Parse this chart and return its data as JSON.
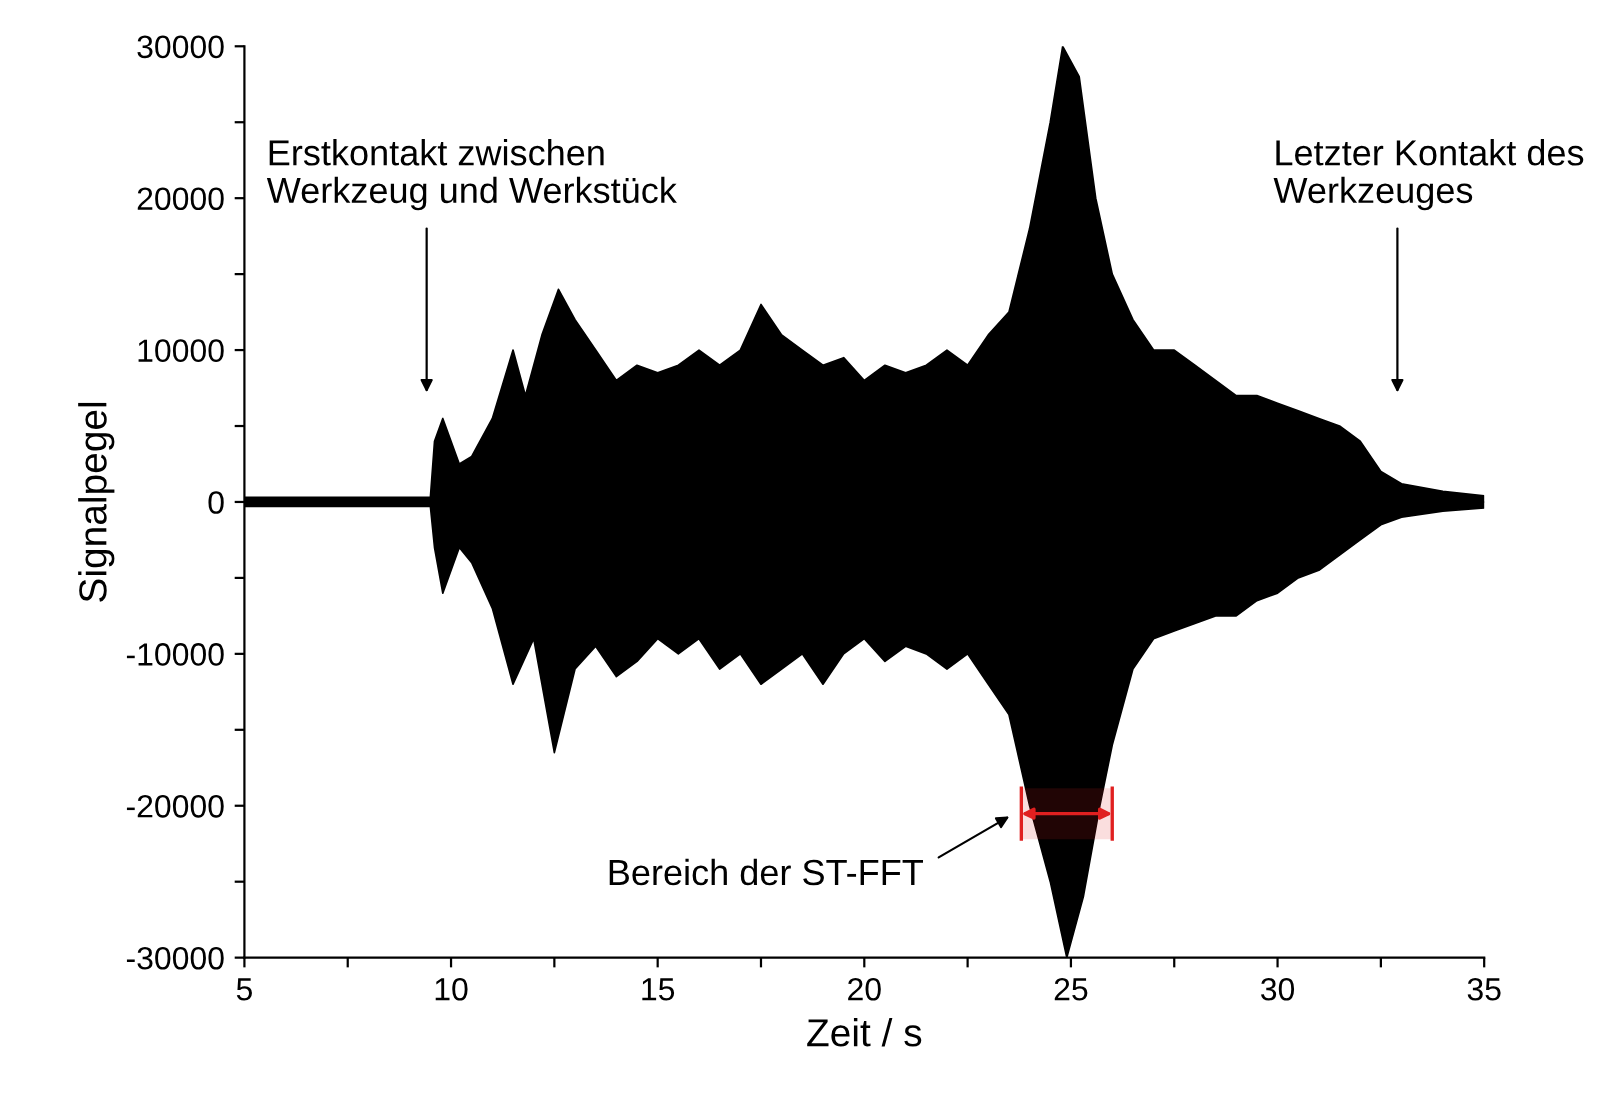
{
  "chart_data": {
    "type": "area",
    "xlabel": "Zeit / s",
    "ylabel": "Signalpegel",
    "xlim": [
      5,
      35
    ],
    "ylim": [
      -30000,
      30000
    ],
    "xticks": [
      5,
      {
        "value": 7.5,
        "label": null
      },
      10,
      {
        "value": 12.5,
        "label": null
      },
      15,
      {
        "value": 17.5,
        "label": null
      },
      20,
      {
        "value": 22.5,
        "label": null
      },
      25,
      {
        "value": 27.5,
        "label": null
      },
      30,
      {
        "value": 32.5,
        "label": null
      },
      35
    ],
    "yticks": [
      -30000,
      {
        "value": -25000,
        "label": null
      },
      -20000,
      {
        "value": -15000,
        "label": null
      },
      -10000,
      {
        "value": -5000,
        "label": null
      },
      0,
      {
        "value": 5000,
        "label": null
      },
      10000,
      {
        "value": 15000,
        "label": null
      },
      20000,
      {
        "value": 25000,
        "label": null
      },
      30000
    ],
    "grid": false,
    "legend": false,
    "series": [
      {
        "color": "#000000",
        "x": [
          5,
          9.5,
          9.6,
          9.8,
          10.2,
          10.5,
          11,
          11.5,
          11.8,
          12.2,
          12.6,
          13,
          13.5,
          14,
          14.5,
          15,
          15.5,
          16,
          16.5,
          17,
          17.5,
          18,
          18.5,
          19,
          19.5,
          20,
          20.5,
          21,
          21.5,
          22,
          22.5,
          23,
          23.5,
          24,
          24.5,
          24.8,
          25.2,
          25.6,
          26,
          26.5,
          27,
          27.5,
          28,
          28.5,
          29,
          29.5,
          30,
          30.5,
          31,
          31.5,
          32,
          32.5,
          33,
          34,
          35
        ],
        "values": [
          300,
          300,
          4000,
          5500,
          2500,
          3000,
          5500,
          10000,
          7000,
          11000,
          14000,
          12000,
          10000,
          8000,
          9000,
          8500,
          9000,
          10000,
          9000,
          10000,
          13000,
          11000,
          10000,
          9000,
          9500,
          8000,
          9000,
          8500,
          9000,
          10000,
          9000,
          11000,
          12500,
          18000,
          25000,
          30000,
          28000,
          20000,
          15000,
          12000,
          10000,
          10000,
          9000,
          8000,
          7000,
          7000,
          6500,
          6000,
          5500,
          5000,
          4000,
          2000,
          1200,
          700,
          400
        ]
      },
      {
        "color": "#000000",
        "x": [
          5,
          9.5,
          9.6,
          9.8,
          10.2,
          10.5,
          11,
          11.5,
          12,
          12.5,
          13,
          13.5,
          14,
          14.5,
          15,
          15.5,
          16,
          16.5,
          17,
          17.5,
          18,
          18.5,
          19,
          19.5,
          20,
          20.5,
          21,
          21.5,
          22,
          22.5,
          23,
          23.5,
          24,
          24.5,
          24.9,
          25.3,
          25.7,
          26,
          26.5,
          27,
          27.5,
          28,
          28.5,
          29,
          29.5,
          30,
          30.5,
          31,
          31.5,
          32,
          32.5,
          33,
          34,
          35
        ],
        "values": [
          -300,
          -300,
          -3000,
          -6000,
          -3000,
          -4000,
          -7000,
          -12000,
          -9000,
          -16500,
          -11000,
          -9500,
          -11500,
          -10500,
          -9000,
          -10000,
          -9000,
          -11000,
          -10000,
          -12000,
          -11000,
          -10000,
          -12000,
          -10000,
          -9000,
          -10500,
          -9500,
          -10000,
          -11000,
          -10000,
          -12000,
          -14000,
          -20000,
          -25000,
          -30000,
          -26000,
          -20000,
          -16000,
          -11000,
          -9000,
          -8500,
          -8000,
          -7500,
          -7500,
          -6500,
          -6000,
          -5000,
          -4500,
          -3500,
          -2500,
          -1500,
          -1000,
          -600,
          -400
        ]
      }
    ],
    "bands": [
      {
        "axis": "x",
        "from": 23.8,
        "to": 26.0,
        "color": "#e02020"
      }
    ],
    "annotations": [
      "Erstkontakt zwischen\nWerkzeug und Werkstück",
      "Letzter Kontakt des\nWerkzeuges",
      "Bereich der ST-FFT"
    ]
  }
}
